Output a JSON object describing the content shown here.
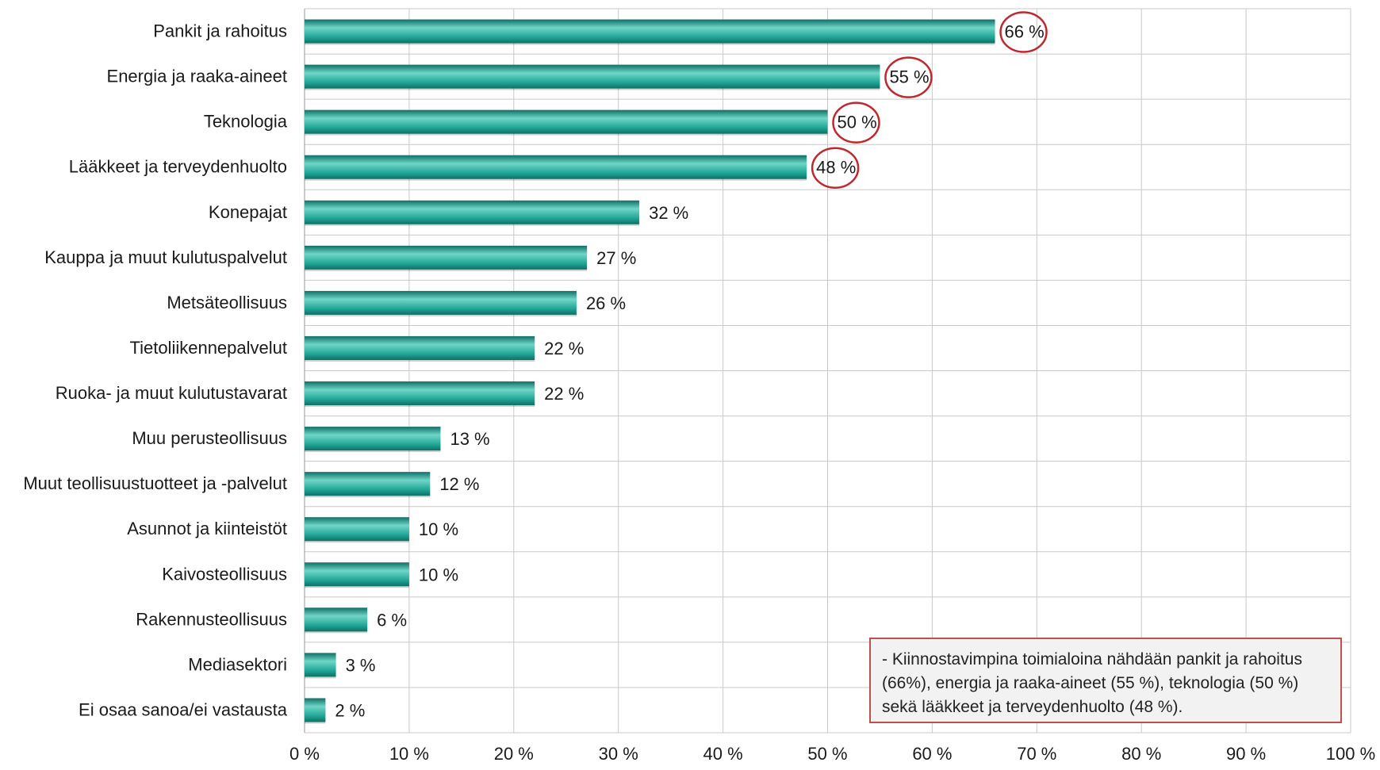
{
  "chart_data": {
    "type": "bar",
    "orientation": "horizontal",
    "categories": [
      "Pankit ja rahoitus",
      "Energia ja raaka-aineet",
      "Teknologia",
      "Lääkkeet ja terveydenhuolto",
      "Konepajat",
      "Kauppa ja muut kulutuspalvelut",
      "Metsäteollisuus",
      "Tietoliikennepalvelut",
      "Ruoka- ja muut kulutustavarat",
      "Muu perusteollisuus",
      "Muut teollisuustuotteet ja -palvelut",
      "Asunnot ja kiinteistöt",
      "Kaivosteollisuus",
      "Rakennusteollisuus",
      "Mediasektori",
      "Ei osaa sanoa/ei vastausta"
    ],
    "values": [
      66,
      55,
      50,
      48,
      32,
      27,
      26,
      22,
      22,
      13,
      12,
      10,
      10,
      6,
      3,
      2
    ],
    "value_labels": [
      "66 %",
      "55 %",
      "50 %",
      "48 %",
      "32 %",
      "27 %",
      "26 %",
      "22 %",
      "22 %",
      "13 %",
      "12 %",
      "10 %",
      "10 %",
      "6 %",
      "3 %",
      "2 %"
    ],
    "highlighted": [
      true,
      true,
      true,
      true,
      false,
      false,
      false,
      false,
      false,
      false,
      false,
      false,
      false,
      false,
      false,
      false
    ],
    "xlim": [
      0,
      100
    ],
    "x_ticks": [
      0,
      10,
      20,
      30,
      40,
      50,
      60,
      70,
      80,
      90,
      100
    ],
    "x_tick_labels": [
      "0 %",
      "10 %",
      "20 %",
      "30 %",
      "40 %",
      "50 %",
      "60 %",
      "70 %",
      "80 %",
      "90 %",
      "100 %"
    ],
    "grid": true,
    "title": "",
    "xlabel": "",
    "ylabel": "",
    "colors": {
      "bar": "#1fa595",
      "bar_light": "#6fd6c8",
      "bar_dark": "#0e6f65",
      "highlight_circle": "#c0282d",
      "grid": "#c8c8c8"
    }
  },
  "note": {
    "text": "- Kiinnostavimpina toimialoina nähdään pankit ja rahoitus (66%), energia ja raaka-aineet (55 %), teknologia (50 %) sekä lääkkeet ja terveydenhuolto (48 %).",
    "border_color": "#c0504d",
    "background": "#f2f2f2"
  }
}
